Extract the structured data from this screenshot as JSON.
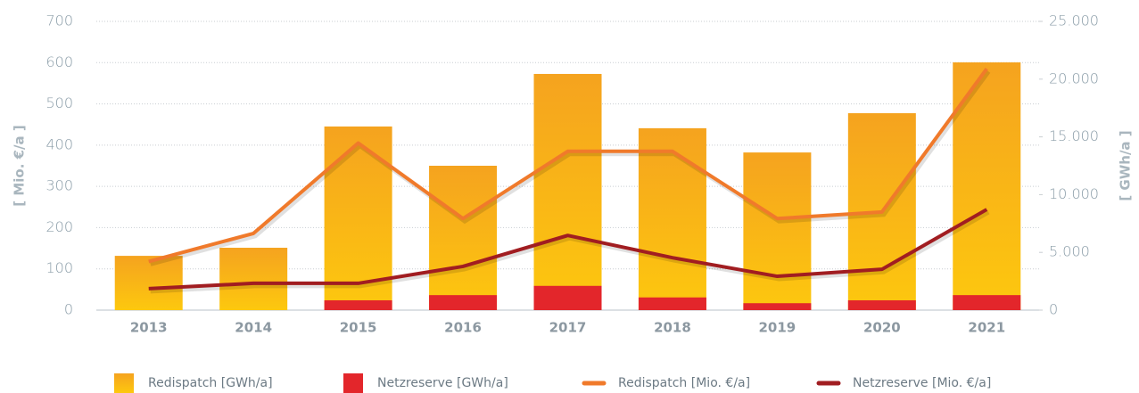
{
  "chart_data": {
    "type": "bar",
    "categories": [
      "2013",
      "2014",
      "2015",
      "2016",
      "2017",
      "2018",
      "2019",
      "2020",
      "2021"
    ],
    "ylabel": "[ Mio. €/a ]",
    "y2label": "[ GWh/a ]",
    "ylim": [
      0,
      700
    ],
    "yticks": [
      0,
      100,
      200,
      300,
      400,
      500,
      600,
      700
    ],
    "y2lim": [
      0,
      25000
    ],
    "y2ticks": [
      0,
      {
        "value": 5000,
        "label": "5.000"
      },
      {
        "value": 10000,
        "label": "10.000"
      },
      {
        "value": 15000,
        "label": "15.000"
      },
      {
        "value": 20000,
        "label": "20.000"
      },
      {
        "value": 25000,
        "label": "25.000"
      }
    ],
    "grid": true,
    "legend": "bottom",
    "series": [
      {
        "name": "Redispatch [GWh/a]",
        "type": "bar",
        "axis": "y2",
        "color": "#fbbf12",
        "values": [
          4700,
          5400,
          15900,
          12500,
          20450,
          15750,
          13650,
          17050,
          21450
        ]
      },
      {
        "name": "Netzreserve [GWh/a]",
        "type": "bar",
        "axis": "y2",
        "color": "#e3262b",
        "values": [
          null,
          null,
          850,
          1300,
          2100,
          1100,
          600,
          850,
          1300
        ]
      },
      {
        "name": "Redispatch [Mio. €/a]",
        "type": "line",
        "color": "#f07a2b",
        "values": [
          118,
          186,
          405,
          222,
          385,
          385,
          222,
          238,
          585
        ]
      },
      {
        "name": "Netzreserve [Mio. €/a]",
        "type": "line",
        "color": "#a11d21",
        "values": [
          52,
          65,
          65,
          106,
          181,
          127,
          82,
          99,
          244
        ]
      }
    ]
  }
}
